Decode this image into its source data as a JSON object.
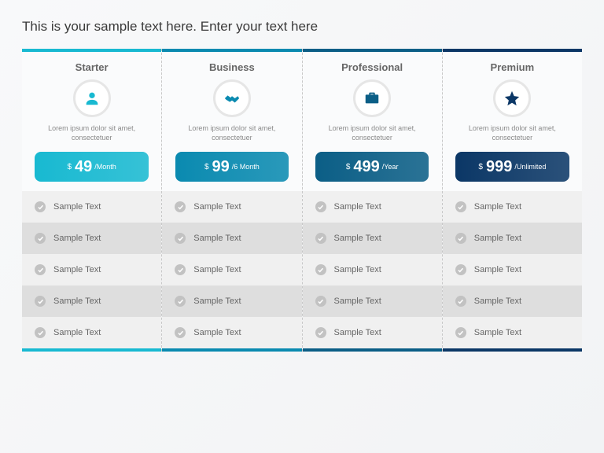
{
  "title": "This is your sample text here. Enter your text here",
  "background_color": "#f5f6f7",
  "divider_color": "#c8c8c8",
  "check_bg": "#c2c2c2",
  "check_color": "#ffffff",
  "row_colors": [
    "#f0f0f0",
    "#dedede"
  ],
  "icon_ring_border": "#e6e6e6",
  "plans": [
    {
      "name": "Starter",
      "icon": "person-icon",
      "icon_color": "#18b9d1",
      "desc": "Lorem ipsum dolor sit amet, consectetuer",
      "currency": "$",
      "amount": "49",
      "period": "/Month",
      "pill_color": "#18b9d1",
      "bar_color": "#18b9d1",
      "features": [
        "Sample Text",
        "Sample Text",
        "Sample Text",
        "Sample Text",
        "Sample Text"
      ]
    },
    {
      "name": "Business",
      "icon": "handshake-icon",
      "icon_color": "#0a8ab0",
      "desc": "Lorem ipsum dolor sit amet, consectetuer",
      "currency": "$",
      "amount": "99",
      "period": "/6 Month",
      "pill_color": "#0a8ab0",
      "bar_color": "#0a8ab0",
      "features": [
        "Sample Text",
        "Sample Text",
        "Sample Text",
        "Sample Text",
        "Sample Text"
      ]
    },
    {
      "name": "Professional",
      "icon": "briefcase-icon",
      "icon_color": "#0b5e86",
      "desc": "Lorem ipsum dolor sit amet, consectetuer",
      "currency": "$",
      "amount": "499",
      "period": "/Year",
      "pill_color": "#0b5e86",
      "bar_color": "#0b5e86",
      "features": [
        "Sample Text",
        "Sample Text",
        "Sample Text",
        "Sample Text",
        "Sample Text"
      ]
    },
    {
      "name": "Premium",
      "icon": "star-icon",
      "icon_color": "#0b3766",
      "desc": "Lorem ipsum dolor sit amet, consectetuer",
      "currency": "$",
      "amount": "999",
      "period": "/Unlimited",
      "pill_color": "#0b3766",
      "bar_color": "#0b3766",
      "features": [
        "Sample Text",
        "Sample Text",
        "Sample Text",
        "Sample Text",
        "Sample Text"
      ]
    }
  ]
}
